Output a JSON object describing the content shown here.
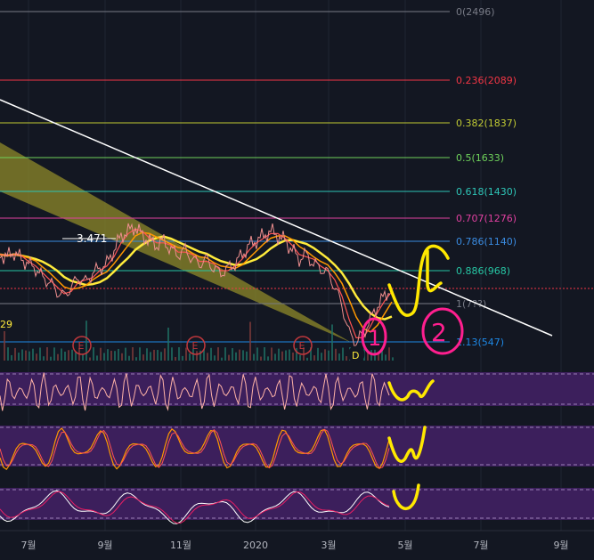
{
  "chart_data": {
    "type": "line",
    "x_ticks": [
      "7월",
      "9월",
      "11월",
      "2020",
      "3월",
      "5월",
      "7월",
      "9월"
    ],
    "fib_levels": [
      {
        "label": "0(2496)",
        "value": 2496,
        "color": "#787b86"
      },
      {
        "label": "0.236(2089)",
        "value": 2089,
        "color": "#f23645"
      },
      {
        "label": "0.382(1837)",
        "value": 1837,
        "color": "#c0ca33"
      },
      {
        "label": "0.5(1633)",
        "value": 1633,
        "color": "#6fd25b"
      },
      {
        "label": "0.618(1430)",
        "value": 1430,
        "color": "#2ec4b6"
      },
      {
        "label": "0.707(1276)",
        "value": 1276,
        "color": "#e040a0"
      },
      {
        "label": "0.786(1140)",
        "value": 1140,
        "color": "#3a8be0"
      },
      {
        "label": "0.886(968)",
        "value": 968,
        "color": "#26c6a4"
      },
      {
        "label": "1(7??)",
        "value": 770,
        "color": "#787b86"
      },
      {
        "label": "1.13(547)",
        "value": 547,
        "color": "#1e88e5"
      }
    ],
    "annotations": {
      "price_label": "3.471",
      "left_value": "29",
      "earnings_marker": "E",
      "dividend_marker": "D",
      "circle_1": "1",
      "circle_2": "2"
    },
    "price_series": [
      2.9,
      2.85,
      2.95,
      2.8,
      2.7,
      2.6,
      2.4,
      2.3,
      2.1,
      2.0,
      2.2,
      2.4,
      2.3,
      2.5,
      2.6,
      2.7,
      3.0,
      3.3,
      3.4,
      3.5,
      3.3,
      3.2,
      3.1,
      3.2,
      3.0,
      2.9,
      3.0,
      2.8,
      2.7,
      2.8,
      2.6,
      2.5,
      2.6,
      2.7,
      2.9,
      3.1,
      3.2,
      3.3,
      3.4,
      3.3,
      3.2,
      3.0,
      2.8,
      2.9,
      2.7,
      2.6,
      2.5,
      2.2,
      1.8,
      1.2,
      1.0,
      1.2,
      1.5,
      1.8,
      2.0,
      2.2
    ],
    "colors": {
      "background": "#131722",
      "price": "#ef8f8f",
      "ma_fast": "#ff5252",
      "ma_mid": "#ff9800",
      "ma_slow": "#ffeb3b",
      "trendline": "#ffffff",
      "wedge": "#8f8a2a",
      "panel": "#3c1f5c",
      "projection": "#ffe800",
      "circle": "#ff1f8f"
    }
  }
}
